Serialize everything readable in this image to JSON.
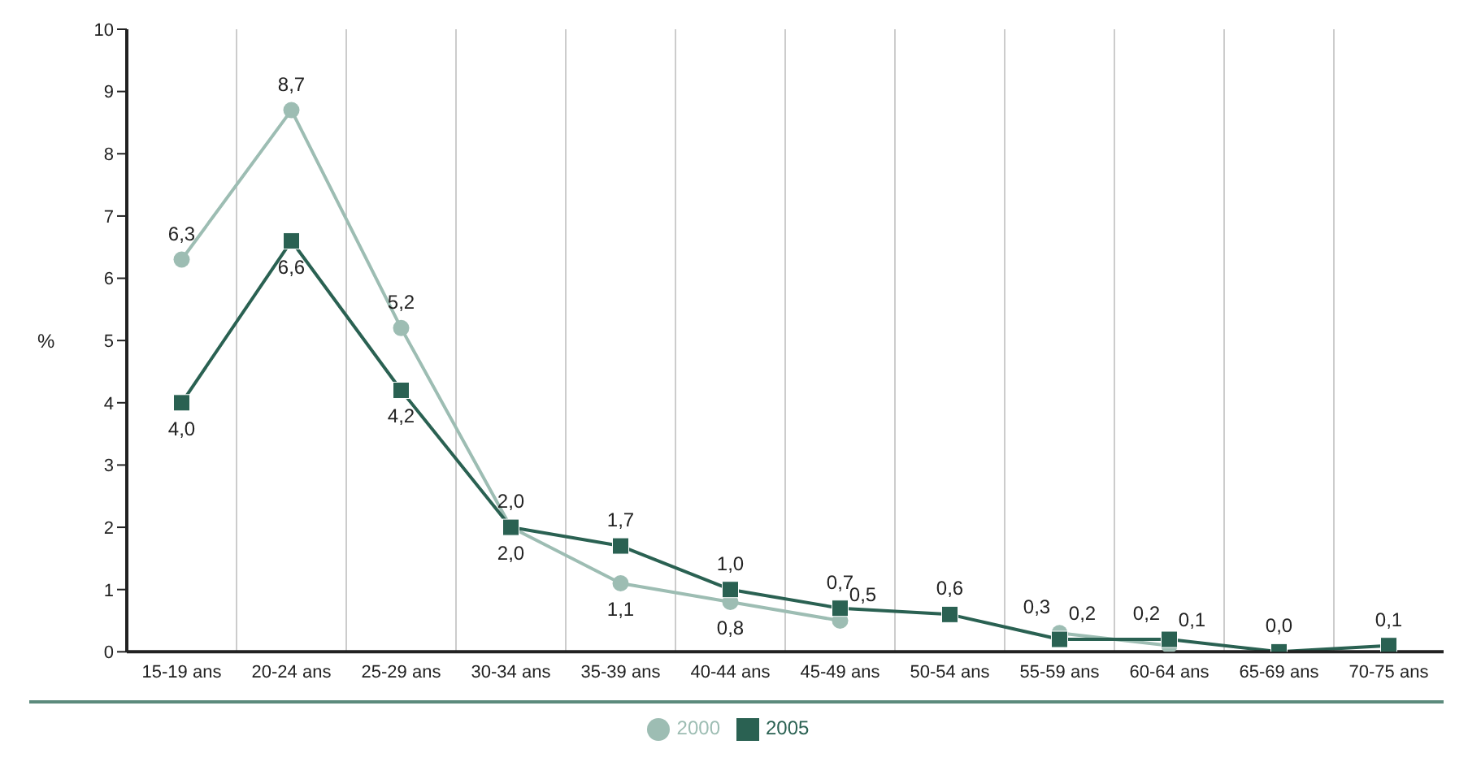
{
  "chart_data": {
    "type": "line",
    "ylabel": "%",
    "categories": [
      "15-19 ans",
      "20-24 ans",
      "25-29 ans",
      "30-34 ans",
      "35-39 ans",
      "40-44 ans",
      "45-49 ans",
      "50-54 ans",
      "55-59 ans",
      "60-64 ans",
      "65-69 ans",
      "70-75 ans"
    ],
    "series": [
      {
        "name": "2000",
        "color": "#9dbdb3",
        "marker": "circle",
        "values": [
          6.3,
          8.7,
          5.2,
          2.0,
          1.1,
          0.8,
          0.5,
          null,
          0.3,
          0.1,
          null,
          null
        ],
        "value_labels": [
          "6,3",
          "8,7",
          "5,2",
          "2,0",
          "1,1",
          "0,8",
          "0,5",
          null,
          "0,3",
          "0,1",
          null,
          null
        ]
      },
      {
        "name": "2005",
        "color": "#2a6152",
        "marker": "square",
        "values": [
          4.0,
          6.6,
          4.2,
          2.0,
          1.7,
          1.0,
          0.7,
          0.6,
          0.2,
          0.2,
          0.0,
          0.1
        ],
        "value_labels": [
          "4,0",
          "6,6",
          "4,2",
          "2,0",
          "1,7",
          "1,0",
          "0,7",
          "0,6",
          "0,2",
          "0,2",
          "0,0",
          "0,1"
        ]
      }
    ],
    "ylim": [
      0,
      10
    ],
    "yticks": [
      0,
      1,
      2,
      3,
      4,
      5,
      6,
      7,
      8,
      9,
      10
    ],
    "grid": "x",
    "legend": "bottom",
    "line_style": "solid"
  }
}
